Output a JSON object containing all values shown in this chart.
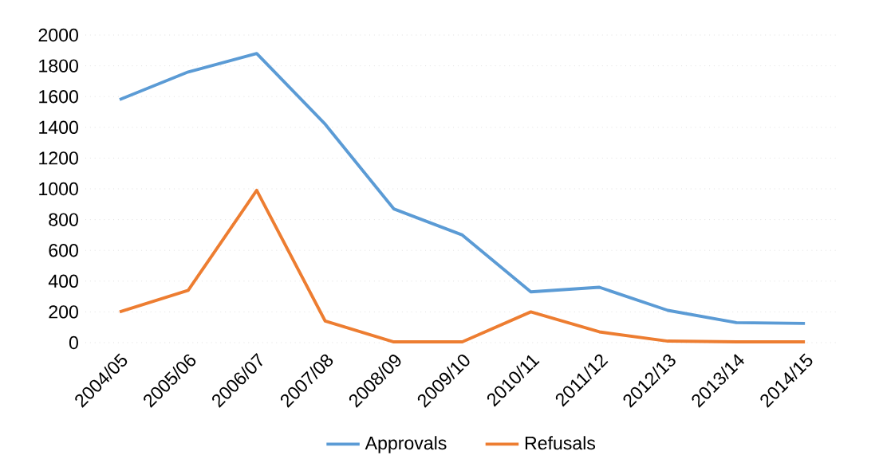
{
  "chart_data": {
    "type": "line",
    "categories": [
      "2004/05",
      "2005/06",
      "2006/07",
      "2007/08",
      "2008/09",
      "2009/10",
      "2010/11",
      "2011/12",
      "2012/13",
      "2013/14",
      "2014/15"
    ],
    "series": [
      {
        "name": "Approvals",
        "color": "#5b9bd5",
        "values": [
          1580,
          1760,
          1880,
          1420,
          870,
          700,
          330,
          360,
          210,
          130,
          125
        ]
      },
      {
        "name": "Refusals",
        "color": "#ed7d31",
        "values": [
          200,
          340,
          990,
          140,
          5,
          5,
          200,
          70,
          10,
          5,
          5
        ]
      }
    ],
    "ylim": [
      0,
      2000
    ],
    "yticks": [
      0,
      200,
      400,
      600,
      800,
      1000,
      1200,
      1400,
      1600,
      1800,
      2000
    ],
    "grid": "y",
    "legend": "bottom",
    "marker": "none",
    "line_style": "solid"
  }
}
